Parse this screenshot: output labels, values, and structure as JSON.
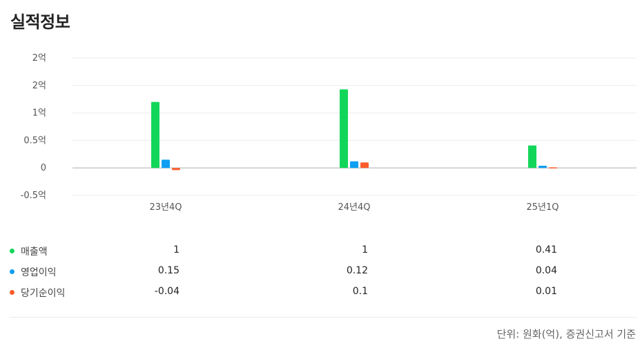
{
  "page": {
    "title": "실적정보",
    "footnote": "단위: 원화(억), 증권신고서 기준"
  },
  "chart_data": {
    "type": "bar",
    "categories": [
      "23년4Q",
      "24년4Q",
      "25년1Q"
    ],
    "y_ticks": [
      {
        "value": 2.0,
        "label": "2억"
      },
      {
        "value": 1.5,
        "label": "2억"
      },
      {
        "value": 1.0,
        "label": "1억"
      },
      {
        "value": 0.5,
        "label": "0.5억"
      },
      {
        "value": 0,
        "label": "0"
      },
      {
        "value": -0.5,
        "label": "-0.5억"
      }
    ],
    "ylim": [
      -0.5,
      2.0
    ],
    "grid": true,
    "legend": "bottom",
    "series": [
      {
        "name": "매출액",
        "color": "#12d65a",
        "values": [
          1.2,
          1.43,
          0.41
        ],
        "labels": [
          "1",
          "1",
          "0.41"
        ]
      },
      {
        "name": "영업이익",
        "color": "#0e9ff2",
        "values": [
          0.15,
          0.12,
          0.04
        ],
        "labels": [
          "0.15",
          "0.12",
          "0.04"
        ]
      },
      {
        "name": "당기순이익",
        "color": "#fb5c2b",
        "values": [
          -0.04,
          0.1,
          0.01
        ],
        "labels": [
          "-0.04",
          "0.1",
          "0.01"
        ]
      }
    ]
  }
}
